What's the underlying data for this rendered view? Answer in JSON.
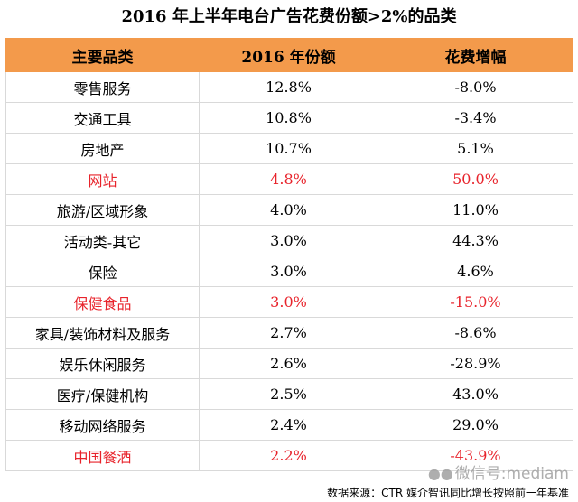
{
  "chart_data": {
    "type": "table",
    "title": "2016 年上半年电台广告花费份额>2%的品类",
    "columns": [
      "主要品类",
      "2016 年份额",
      "花费增幅"
    ],
    "rows": [
      {
        "category": "零售服务",
        "share": "12.8%",
        "growth": "-8.0%",
        "highlight": false
      },
      {
        "category": "交通工具",
        "share": "10.8%",
        "growth": "-3.4%",
        "highlight": false
      },
      {
        "category": "房地产",
        "share": "10.7%",
        "growth": "5.1%",
        "highlight": false
      },
      {
        "category": "网站",
        "share": "4.8%",
        "growth": "50.0%",
        "highlight": true
      },
      {
        "category": "旅游/区域形象",
        "share": "4.0%",
        "growth": "11.0%",
        "highlight": false
      },
      {
        "category": "活动类-其它",
        "share": "3.0%",
        "growth": "44.3%",
        "highlight": false
      },
      {
        "category": "保险",
        "share": "3.0%",
        "growth": "4.6%",
        "highlight": false
      },
      {
        "category": "保健食品",
        "share": "3.0%",
        "growth": "-15.0%",
        "highlight": true
      },
      {
        "category": "家具/装饰材料及服务",
        "share": "2.7%",
        "growth": "-8.6%",
        "highlight": false
      },
      {
        "category": "娱乐休闲服务",
        "share": "2.6%",
        "growth": "-28.9%",
        "highlight": false
      },
      {
        "category": "医疗/保健机构",
        "share": "2.5%",
        "growth": "43.0%",
        "highlight": false
      },
      {
        "category": "移动网络服务",
        "share": "2.4%",
        "growth": "29.0%",
        "highlight": false
      },
      {
        "category": "中国餐酒",
        "share": "2.2%",
        "growth": "-43.9%",
        "highlight": true
      }
    ],
    "colors": {
      "header": "#f39a4b",
      "highlight": "#e8232b"
    },
    "source": "数据来源：CTR 媒介智讯同比增长按照前一年基准",
    "watermark": "微信号:mediam"
  }
}
